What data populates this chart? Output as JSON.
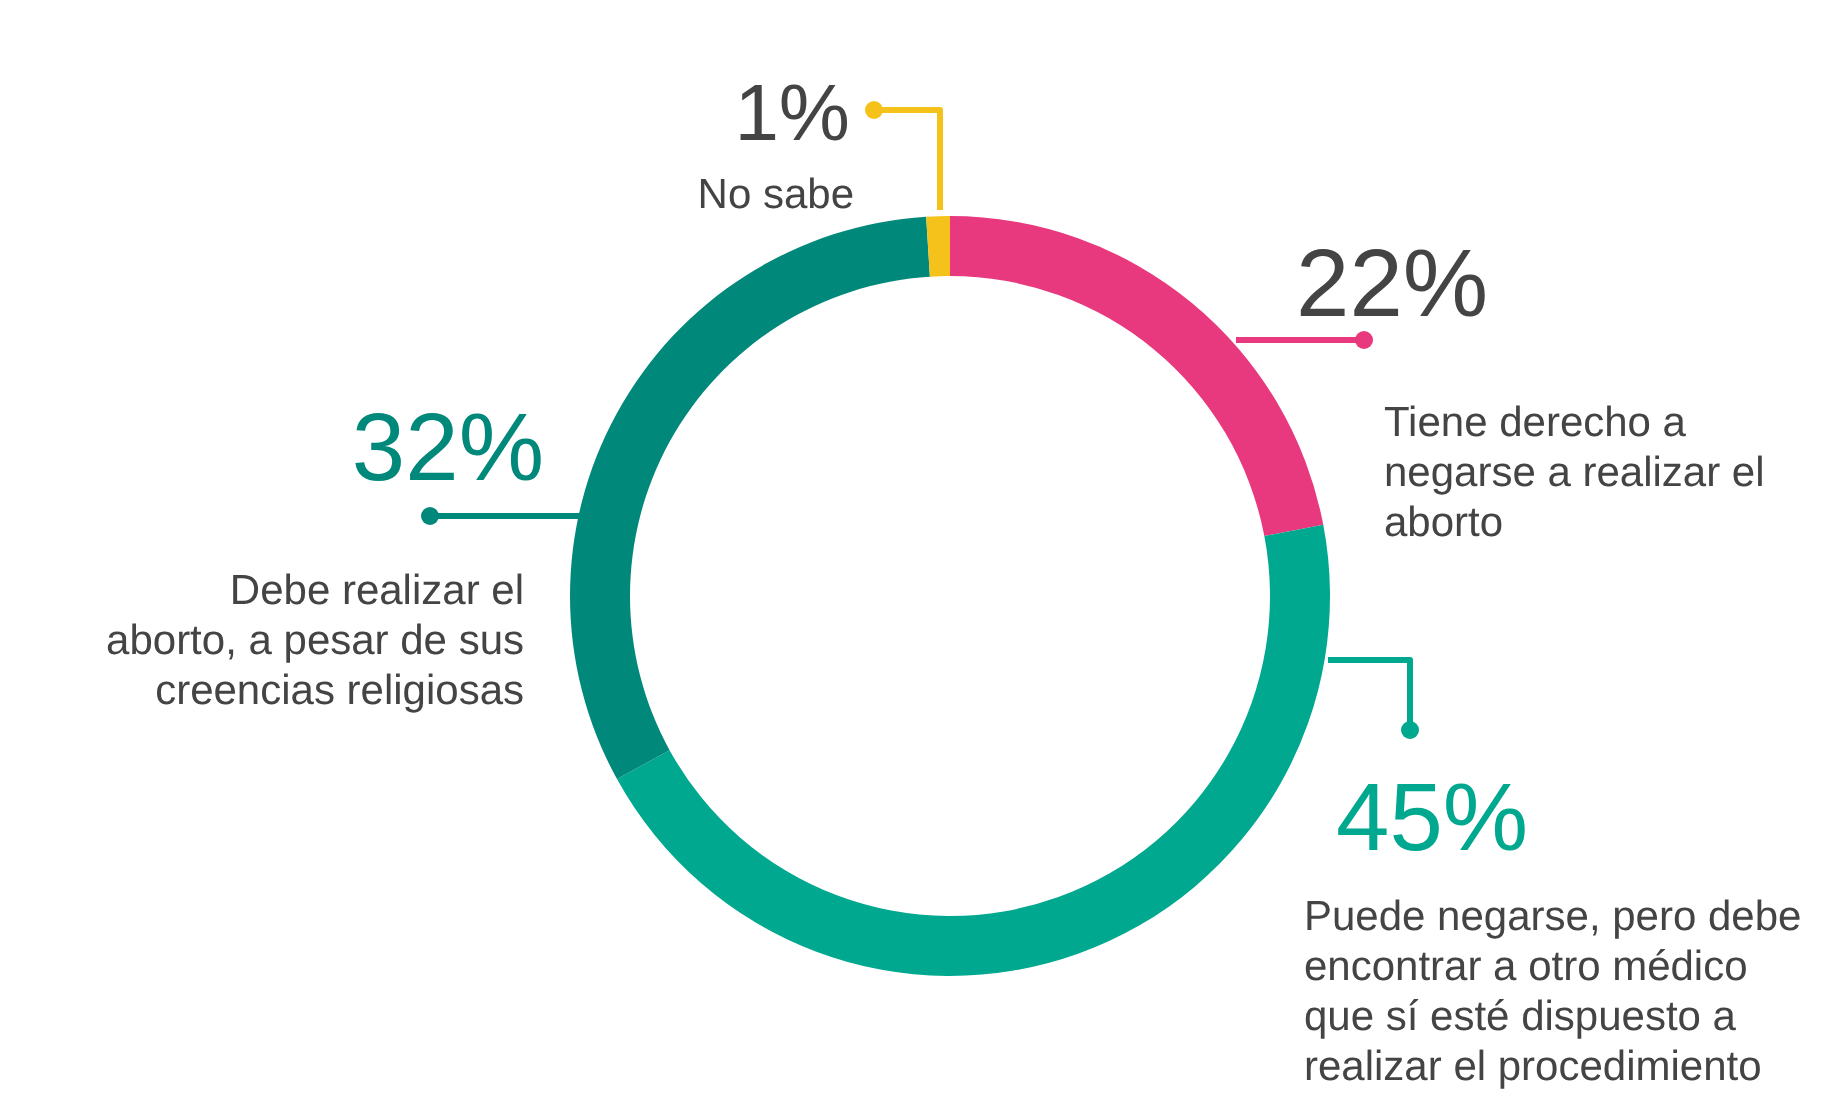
{
  "chart_data": {
    "type": "donut",
    "categories": [
      "Tiene derecho a negarse a realizar el aborto",
      "Puede negarse, pero debe encontrar a otro médico que sí esté dispuesto a realizar el procedimiento",
      "Debe realizar el aborto, a pesar de sus creencias religiosas",
      "No sabe"
    ],
    "values": [
      22,
      45,
      32,
      1
    ],
    "value_labels": [
      "22%",
      "45%",
      "32%",
      "1%"
    ],
    "colors": [
      "#e8387e",
      "#00a88f",
      "#00887a",
      "#f5c21b"
    ]
  }
}
